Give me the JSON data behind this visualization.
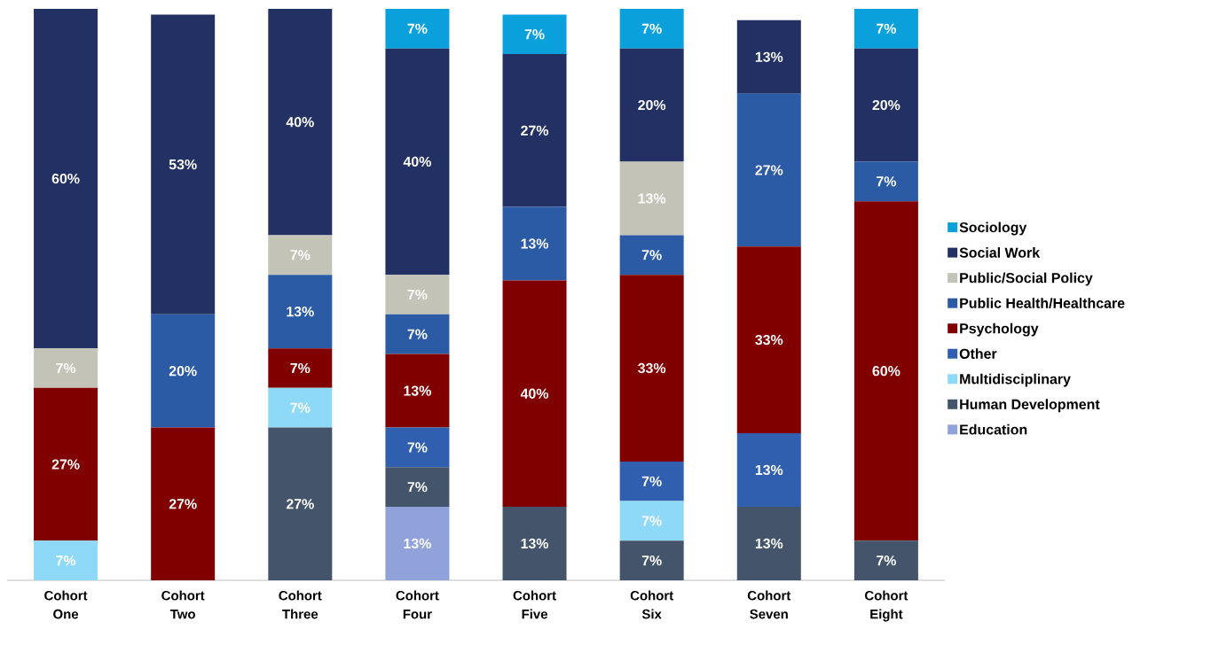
{
  "chart_data": {
    "type": "bar",
    "stacked": true,
    "categories": [
      "Cohort One",
      "Cohort Two",
      "Cohort Three",
      "Cohort Four",
      "Cohort Five",
      "Cohort Six",
      "Cohort Seven",
      "Cohort Eight"
    ],
    "tick_labels": "x",
    "legend": "right",
    "series": [
      {
        "name": "Education",
        "color": "#8fa2da",
        "values": [
          null,
          null,
          null,
          13,
          null,
          null,
          null,
          null
        ],
        "value_labels": [
          null,
          null,
          null,
          "13%",
          null,
          null,
          null,
          null
        ]
      },
      {
        "name": "Human Development",
        "color": "#44546a",
        "values": [
          null,
          null,
          27,
          7,
          13,
          7,
          13,
          7
        ],
        "value_labels": [
          null,
          null,
          "27%",
          "7%",
          "13%",
          "7%",
          "13%",
          "7%"
        ]
      },
      {
        "name": "Multidisciplinary",
        "color": "#8fd9f8",
        "values": [
          7,
          null,
          7,
          null,
          null,
          7,
          null,
          null
        ],
        "value_labels": [
          "7%",
          null,
          "7%",
          null,
          null,
          "7%",
          null,
          null
        ]
      },
      {
        "name": "Other",
        "color": "#2f5fae",
        "values": [
          null,
          null,
          null,
          7,
          null,
          7,
          13,
          null
        ],
        "value_labels": [
          null,
          null,
          null,
          "7%",
          null,
          "7%",
          "13%",
          null
        ]
      },
      {
        "name": "Psychology",
        "color": "#800000",
        "values": [
          27,
          27,
          7,
          13,
          40,
          33,
          33,
          60
        ],
        "value_labels": [
          "27%",
          "27%",
          "7%",
          "13%",
          "40%",
          "33%",
          "33%",
          "60%"
        ]
      },
      {
        "name": "Public Health/Healthcare",
        "color": "#2c5ba6",
        "values": [
          null,
          20,
          13,
          7,
          13,
          7,
          27,
          7
        ],
        "value_labels": [
          null,
          "20%",
          "13%",
          "7%",
          "13%",
          "7%",
          "27%",
          "7%"
        ]
      },
      {
        "name": "Public/Social Policy",
        "color": "#c3c3b7",
        "values": [
          7,
          null,
          7,
          7,
          null,
          13,
          null,
          null
        ],
        "value_labels": [
          "7%",
          null,
          "7%",
          "7%",
          null,
          "13%",
          null,
          null
        ]
      },
      {
        "name": "Social Work",
        "color": "#223063",
        "values": [
          60,
          53,
          40,
          40,
          27,
          20,
          13,
          20
        ],
        "value_labels": [
          "60%",
          "53%",
          "40%",
          "40%",
          "27%",
          "20%",
          "13%",
          "20%"
        ]
      },
      {
        "name": "Sociology",
        "color": "#0aa0dc",
        "values": [
          null,
          null,
          null,
          7,
          7,
          7,
          null,
          7
        ],
        "value_labels": [
          null,
          null,
          null,
          "7%",
          "7%",
          "7%",
          null,
          "7%"
        ]
      }
    ]
  }
}
